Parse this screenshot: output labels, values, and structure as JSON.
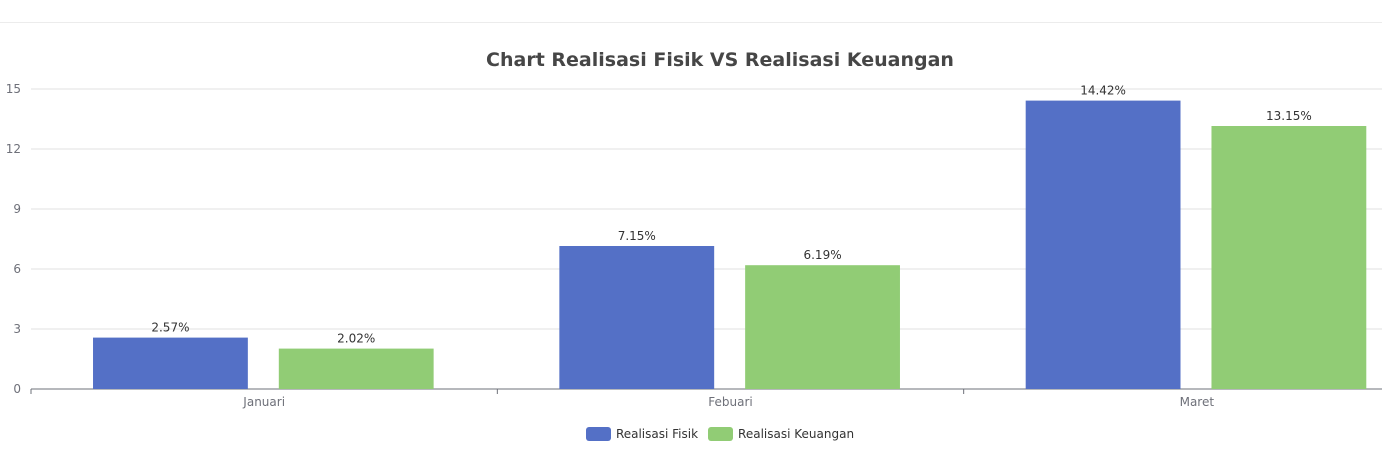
{
  "chart_data": {
    "type": "bar",
    "title": "Chart Realisasi Fisik VS Realisasi Keuangan",
    "categories": [
      "Januari",
      "Febuari",
      "Maret"
    ],
    "series": [
      {
        "name": "Realisasi Fisik",
        "values": [
          2.57,
          7.15,
          14.42
        ],
        "labels": [
          "2.57%",
          "7.15%",
          "14.42%"
        ],
        "color": "#5470c6"
      },
      {
        "name": "Realisasi Keuangan",
        "values": [
          2.02,
          6.19,
          13.15
        ],
        "labels": [
          "2.02%",
          "6.19%",
          "13.15%"
        ],
        "color": "#91cc75"
      }
    ],
    "yticks": [
      "0",
      "3",
      "6",
      "9",
      "12",
      "15"
    ],
    "ylim": [
      0,
      15
    ],
    "grid": true,
    "legend_position": "bottom-center"
  }
}
